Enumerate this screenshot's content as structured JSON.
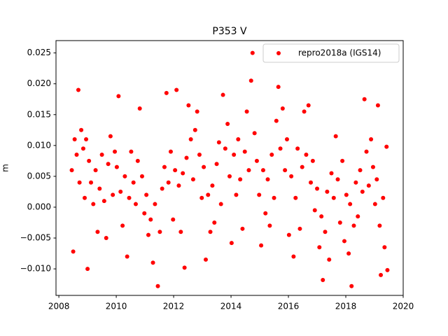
{
  "chart_data": {
    "type": "scatter",
    "title": "P353 V",
    "y_label": "m",
    "x": [
      2008.45,
      2008.5,
      2008.55,
      2008.62,
      2008.68,
      2008.72,
      2008.78,
      2008.85,
      2008.9,
      2008.95,
      2009.0,
      2009.05,
      2009.12,
      2009.2,
      2009.28,
      2009.35,
      2009.42,
      2009.5,
      2009.58,
      2009.65,
      2009.72,
      2009.8,
      2009.88,
      2009.95,
      2010.02,
      2010.08,
      2010.15,
      2010.22,
      2010.3,
      2010.38,
      2010.45,
      2010.52,
      2010.6,
      2010.68,
      2010.75,
      2010.82,
      2010.9,
      2010.98,
      2011.05,
      2011.12,
      2011.2,
      2011.28,
      2011.35,
      2011.45,
      2011.52,
      2011.6,
      2011.68,
      2011.75,
      2011.82,
      2011.9,
      2011.98,
      2012.05,
      2012.1,
      2012.18,
      2012.25,
      2012.32,
      2012.38,
      2012.45,
      2012.52,
      2012.6,
      2012.68,
      2012.75,
      2012.82,
      2012.9,
      2012.98,
      2013.05,
      2013.12,
      2013.2,
      2013.28,
      2013.35,
      2013.42,
      2013.5,
      2013.58,
      2013.65,
      2013.72,
      2013.8,
      2013.88,
      2013.95,
      2014.02,
      2014.1,
      2014.18,
      2014.25,
      2014.32,
      2014.4,
      2014.48,
      2014.55,
      2014.62,
      2014.7,
      2014.75,
      2014.82,
      2014.9,
      2014.98,
      2015.05,
      2015.12,
      2015.2,
      2015.28,
      2015.35,
      2015.42,
      2015.5,
      2015.58,
      2015.65,
      2015.72,
      2015.8,
      2015.88,
      2015.95,
      2016.02,
      2016.1,
      2016.18,
      2016.25,
      2016.32,
      2016.4,
      2016.48,
      2016.55,
      2016.62,
      2016.7,
      2016.78,
      2016.85,
      2016.92,
      2017.0,
      2017.08,
      2017.15,
      2017.2,
      2017.28,
      2017.35,
      2017.42,
      2017.5,
      2017.58,
      2017.65,
      2017.72,
      2017.8,
      2017.88,
      2017.95,
      2018.02,
      2018.1,
      2018.15,
      2018.2,
      2018.28,
      2018.35,
      2018.42,
      2018.5,
      2018.58,
      2018.65,
      2018.72,
      2018.8,
      2018.88,
      2018.95,
      2019.02,
      2019.08,
      2019.12,
      2019.18,
      2019.22,
      2019.3,
      2019.35,
      2019.42,
      2019.45
    ],
    "series": [
      {
        "name": "repro2018a (IGS14)",
        "color": "#ff0000",
        "values": [
          0.006,
          -0.0072,
          0.011,
          0.0085,
          0.019,
          0.004,
          0.0125,
          0.0095,
          0.0015,
          0.011,
          -0.01,
          0.0075,
          0.004,
          0.0005,
          0.006,
          -0.004,
          0.003,
          0.0085,
          0.001,
          -0.005,
          0.007,
          0.0115,
          0.002,
          0.009,
          0.0065,
          0.018,
          0.0025,
          -0.003,
          0.005,
          -0.008,
          0.0015,
          0.009,
          0.004,
          0.0005,
          0.0075,
          0.016,
          0.005,
          -0.001,
          0.002,
          -0.0045,
          -0.002,
          -0.009,
          0.0005,
          -0.0128,
          -0.004,
          0.003,
          0.0065,
          0.0185,
          0.004,
          0.009,
          -0.002,
          0.006,
          0.019,
          0.0035,
          -0.004,
          0.0055,
          -0.0098,
          0.008,
          0.0165,
          0.011,
          0.0045,
          0.0125,
          0.0155,
          0.0085,
          0.0015,
          0.0065,
          -0.0085,
          0.002,
          -0.004,
          0.0035,
          -0.0025,
          0.007,
          0.0105,
          0.0005,
          0.0182,
          0.0095,
          0.0135,
          0.005,
          -0.0058,
          0.0085,
          0.002,
          0.011,
          0.0045,
          -0.0035,
          0.009,
          0.0155,
          0.006,
          0.0205,
          0.025,
          0.012,
          0.0075,
          0.002,
          -0.0062,
          0.006,
          -0.001,
          0.0045,
          -0.003,
          0.0085,
          0.0015,
          0.014,
          0.0195,
          0.0095,
          0.016,
          0.006,
          0.011,
          -0.0045,
          0.005,
          -0.008,
          0.0015,
          0.0095,
          -0.0035,
          0.0065,
          0.0155,
          0.0085,
          0.0165,
          0.004,
          0.0075,
          -0.0005,
          0.003,
          -0.0065,
          -0.0015,
          -0.0118,
          -0.004,
          0.0025,
          -0.0085,
          0.0055,
          0.0015,
          0.0115,
          0.0045,
          -0.0025,
          0.0075,
          -0.0055,
          0.002,
          -0.0075,
          0.0005,
          -0.0128,
          -0.003,
          0.004,
          -0.0015,
          0.006,
          0.0025,
          0.0175,
          0.009,
          0.0035,
          0.011,
          0.0065,
          0.0005,
          0.0045,
          0.0165,
          -0.003,
          -0.011,
          0.0015,
          -0.0065,
          0.0098,
          -0.0102
        ]
      }
    ],
    "xlim": [
      2007.9,
      2020.0
    ],
    "xticks": [
      2008,
      2010,
      2012,
      2014,
      2016,
      2018,
      2020
    ],
    "ylim": [
      -0.0143,
      0.027
    ],
    "yticks": [
      {
        "value": -0.01,
        "label": "−0.010"
      },
      {
        "value": -0.005,
        "label": "−0.005"
      },
      {
        "value": 0,
        "label": "0.000"
      },
      {
        "value": 0.005,
        "label": "0.005"
      },
      {
        "value": 0.01,
        "label": "0.010"
      },
      {
        "value": 0.015,
        "label": "0.015"
      },
      {
        "value": 0.02,
        "label": "0.020"
      },
      {
        "value": 0.025,
        "label": "0.025"
      }
    ],
    "legend": "upper right"
  }
}
